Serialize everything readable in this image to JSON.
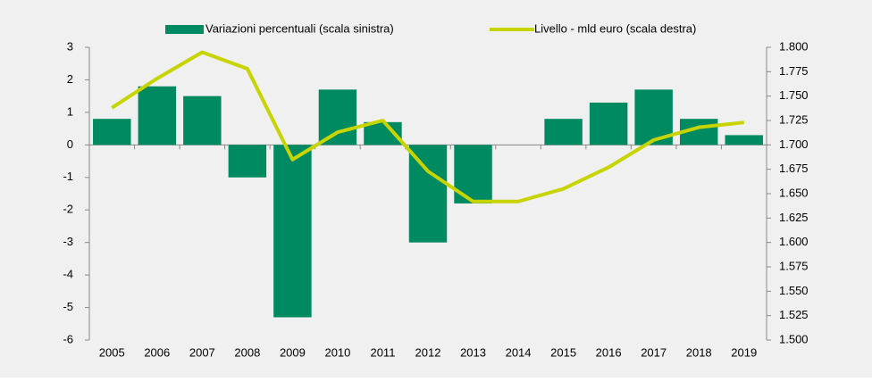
{
  "chart_data": {
    "type": "bar",
    "categories": [
      "2005",
      "2006",
      "2007",
      "2008",
      "2009",
      "2010",
      "2011",
      "2012",
      "2013",
      "2014",
      "2015",
      "2016",
      "2017",
      "2018",
      "2019"
    ],
    "series": [
      {
        "name": "Variazioni percentuali (scala sinistra)",
        "type": "bar",
        "color": "#008a62",
        "values": [
          0.8,
          1.8,
          1.5,
          -1.0,
          -5.3,
          1.7,
          0.7,
          -3.0,
          -1.8,
          0,
          0.8,
          1.3,
          1.7,
          0.8,
          0.3
        ]
      },
      {
        "name": "Livello - mld euro (scala destra)",
        "type": "line",
        "axis": "y2",
        "color": "#c8d400",
        "values": [
          1738,
          1768,
          1795,
          1778,
          1685,
          1713,
          1725,
          1673,
          1642,
          1642,
          1655,
          1677,
          1705,
          1718,
          1723
        ]
      }
    ],
    "ylim": [
      -6,
      3
    ],
    "yticks": [
      -6,
      -5,
      -4,
      -3,
      -2,
      -1,
      0,
      1,
      2,
      3
    ],
    "y2lim": [
      1500,
      1800
    ],
    "y2ticks": [
      {
        "value": 1500,
        "label": "1.500"
      },
      {
        "value": 1525,
        "label": "1.525"
      },
      {
        "value": 1550,
        "label": "1.550"
      },
      {
        "value": 1575,
        "label": "1.575"
      },
      {
        "value": 1600,
        "label": "1.600"
      },
      {
        "value": 1625,
        "label": "1.625"
      },
      {
        "value": 1650,
        "label": "1.650"
      },
      {
        "value": 1675,
        "label": "1.675"
      },
      {
        "value": 1700,
        "label": "1.700"
      },
      {
        "value": 1725,
        "label": "1.725"
      },
      {
        "value": 1750,
        "label": "1.750"
      },
      {
        "value": 1775,
        "label": "1.775"
      },
      {
        "value": 1800,
        "label": "1.800"
      }
    ],
    "legend": "top"
  }
}
